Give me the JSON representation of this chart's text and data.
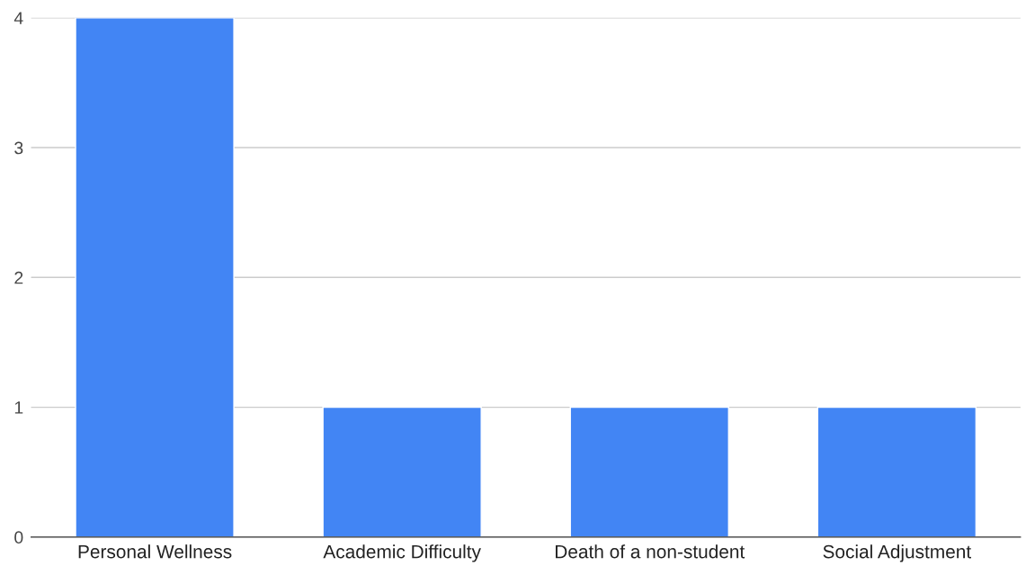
{
  "chart_data": {
    "type": "bar",
    "categories": [
      "Personal Wellness",
      "Academic Difficulty",
      "Death of a non-student",
      "Social Adjustment"
    ],
    "values": [
      4,
      1,
      1,
      1
    ],
    "color": "#4285f4",
    "ylim": [
      0,
      4
    ],
    "yticks": [
      0,
      1,
      2,
      3,
      4
    ],
    "grid": "y"
  }
}
